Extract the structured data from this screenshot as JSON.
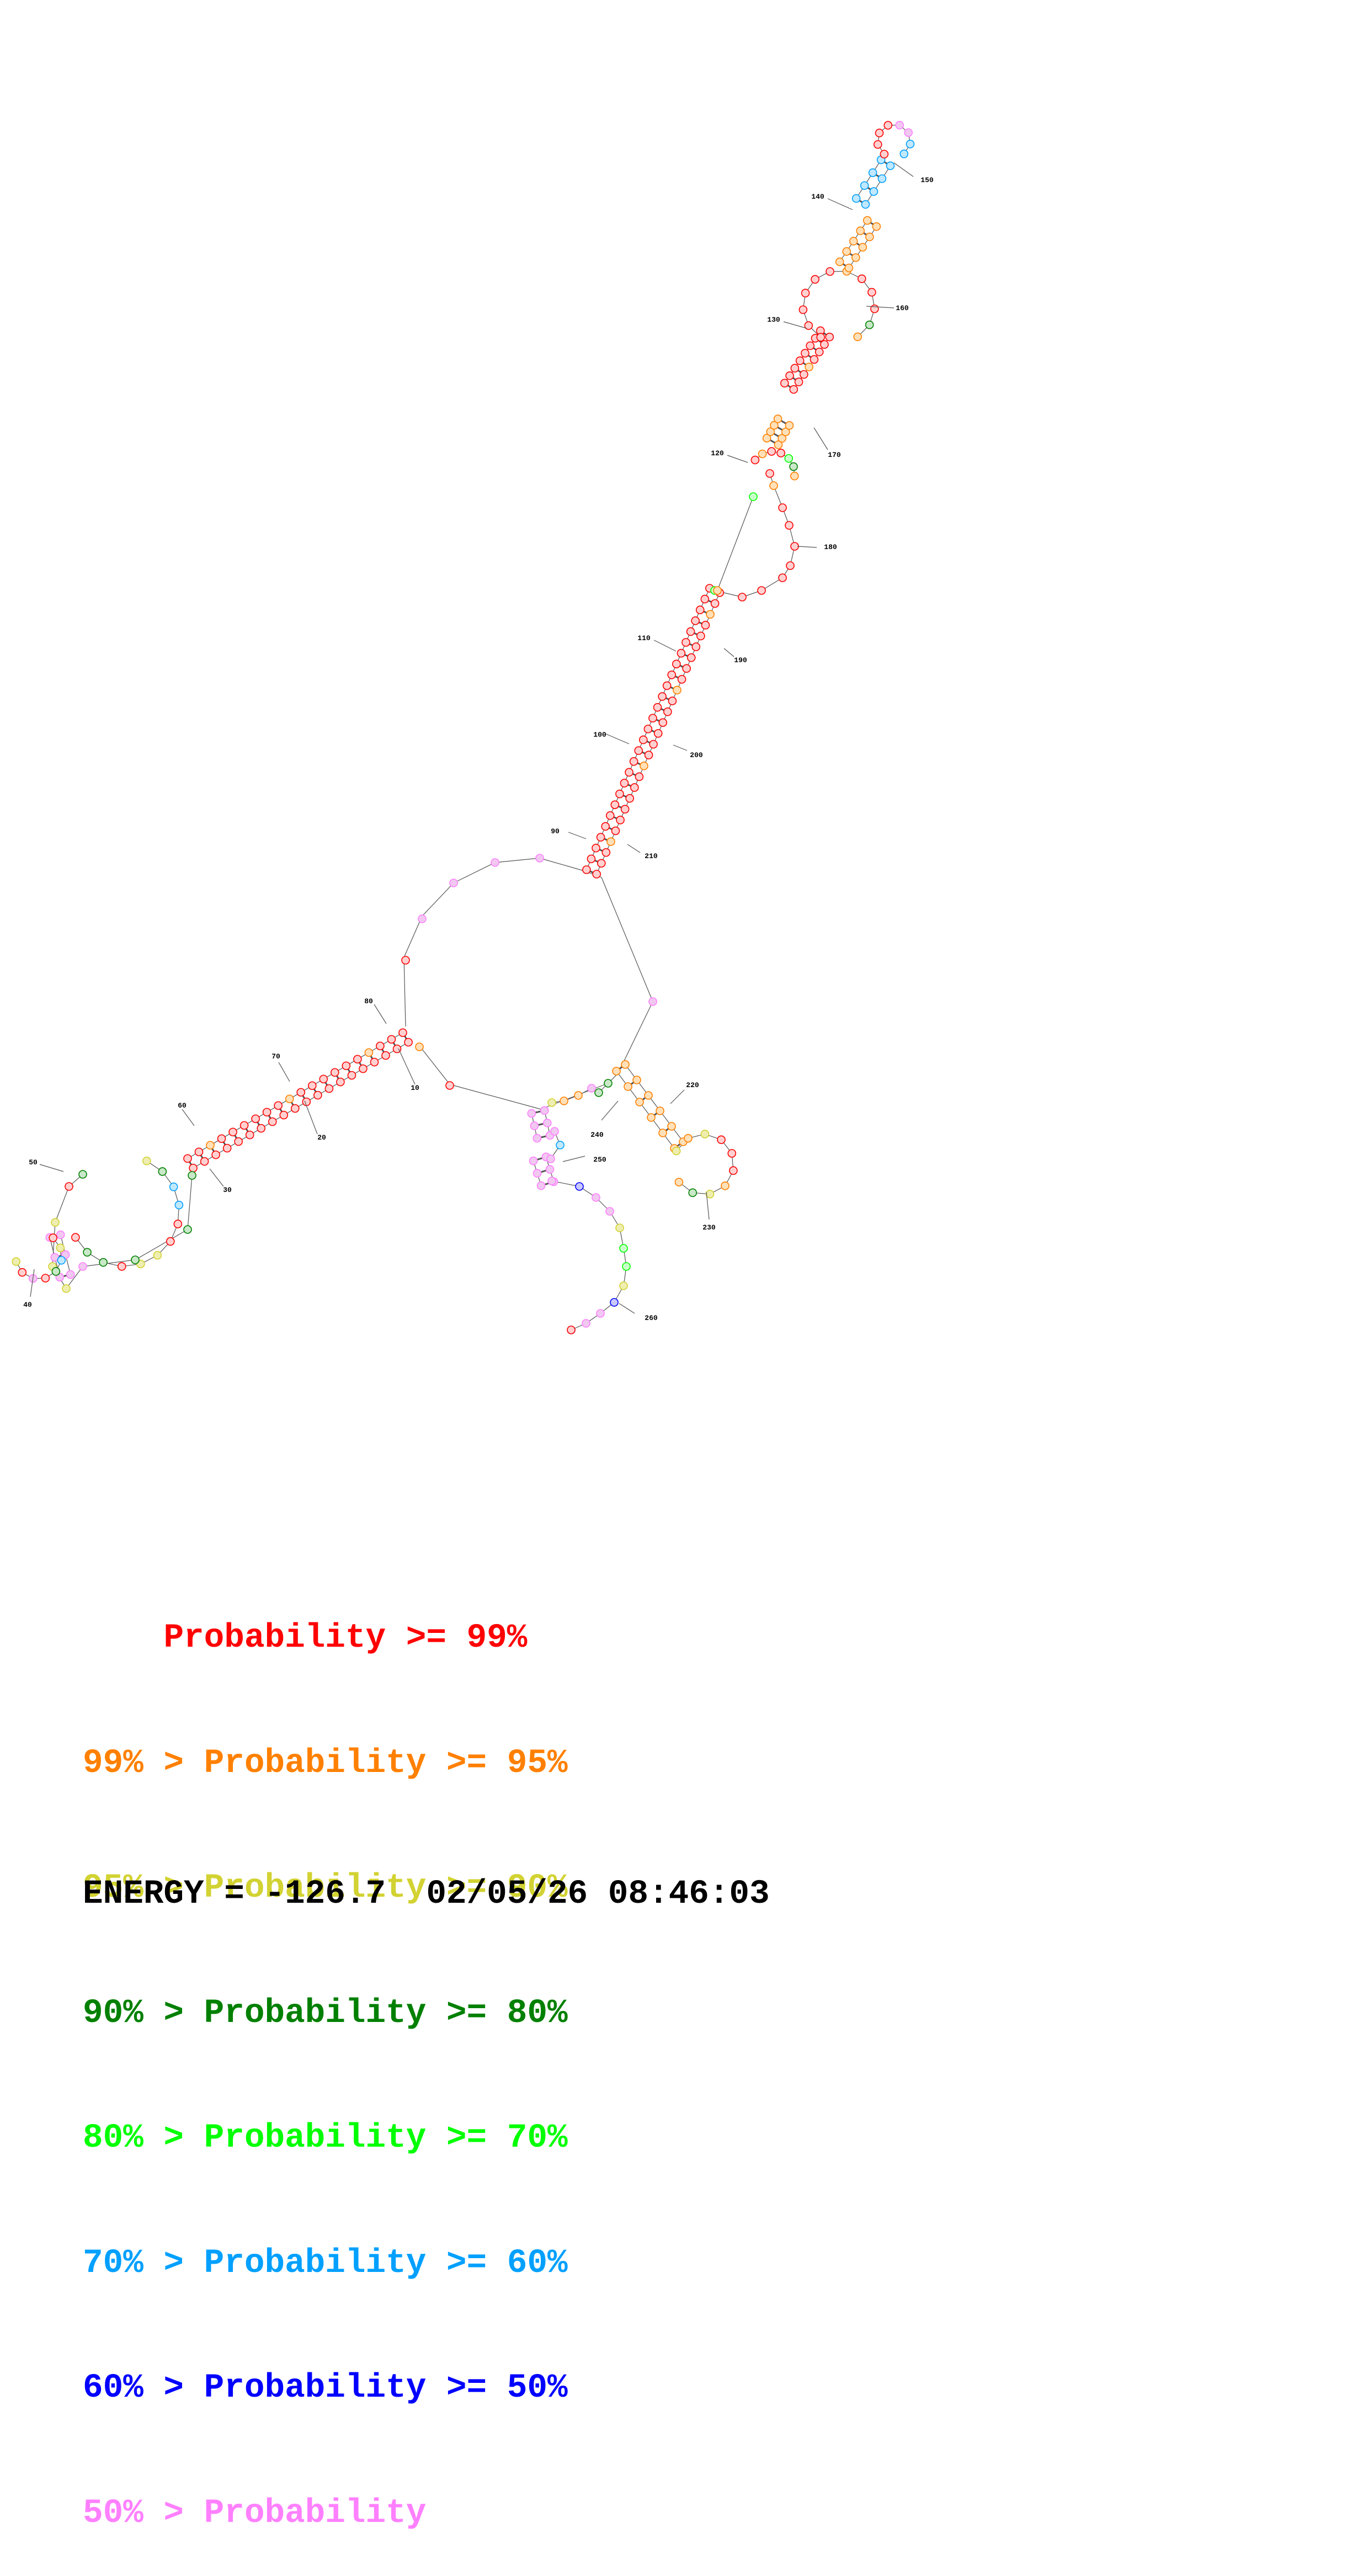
{
  "colors": {
    "p99": "#ff0000",
    "p95": "#ff8000",
    "p90": "#d2d232",
    "p80": "#008000",
    "p70": "#00ff00",
    "p60": "#00a0ff",
    "p50": "#0000ff",
    "plow": "#ff80ff"
  },
  "structure": {
    "tick_labels": [
      "10",
      "20",
      "30",
      "40",
      "50",
      "60",
      "70",
      "80",
      "90",
      "100",
      "110",
      "120",
      "130",
      "140",
      "150",
      "160",
      "170",
      "180",
      "190",
      "200",
      "210",
      "220",
      "230",
      "240",
      "250",
      "260"
    ],
    "segments": [
      {
        "name": "stem-10-80",
        "cls": "p99"
      },
      {
        "name": "stem-90-210",
        "cls": "p99"
      },
      {
        "name": "stem-120-170",
        "cls": "p99"
      },
      {
        "name": "stem-130-160",
        "cls": "p99"
      },
      {
        "name": "stem-140-150",
        "cls": "p60"
      },
      {
        "name": "stem-220-230",
        "cls": "p95"
      },
      {
        "name": "stem-240-250",
        "cls": "plow"
      }
    ]
  },
  "legend": [
    {
      "prefix": "    ",
      "text": "Probability >= 99%",
      "color": "#ff0000"
    },
    {
      "prefix": "99% > ",
      "text": "Probability >= 95%",
      "color": "#ff8000"
    },
    {
      "prefix": "95% > ",
      "text": "Probability >= 90%",
      "color": "#d2d232"
    },
    {
      "prefix": "90% > ",
      "text": "Probability >= 80%",
      "color": "#008000"
    },
    {
      "prefix": "80% > ",
      "text": "Probability >= 70%",
      "color": "#00ff00"
    },
    {
      "prefix": "70% > ",
      "text": "Probability >= 60%",
      "color": "#00a0ff"
    },
    {
      "prefix": "60% > ",
      "text": "Probability >= 50%",
      "color": "#0000ff"
    },
    {
      "prefix": "50% > ",
      "text": "Probability",
      "color": "#ff80ff"
    }
  ],
  "energy": {
    "label": "ENERGY = -126.7",
    "timestamp": "02/05/26 08:46:03"
  }
}
